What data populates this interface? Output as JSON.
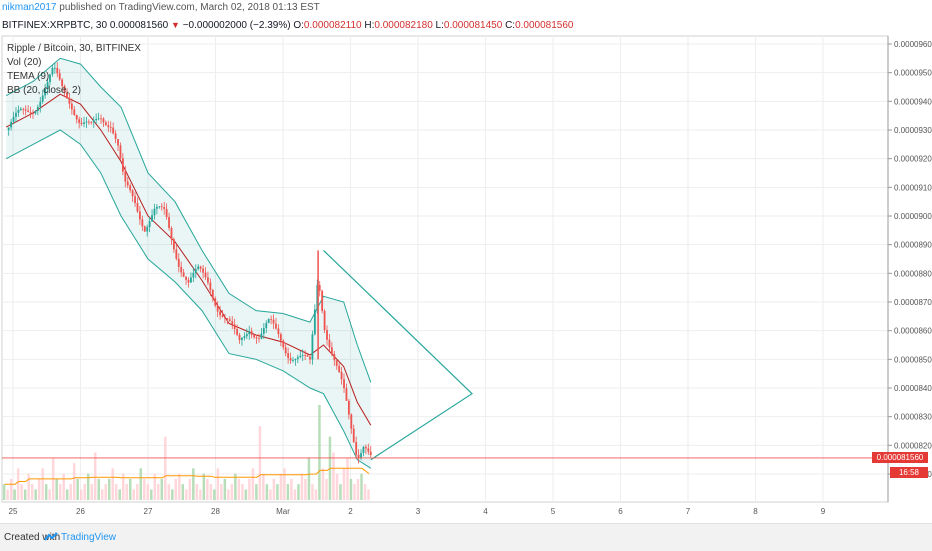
{
  "header": {
    "author": "nikman2017",
    "published_text": " published on TradingView.com, March 02, 2018 01:13 EST",
    "symbol": "BITFINEX:XRPBTC, 30",
    "last": "0.000081560",
    "change": "−0.000002000 (−2.39%)",
    "o_label": "O:",
    "o_value": "0.000082110",
    "h_label": "H:",
    "h_value": "0.000082180",
    "l_label": "L:",
    "l_value": "0.000081450",
    "c_label": "C:",
    "c_value": "0.000081560"
  },
  "legend": {
    "title": "Ripple / Bitcoin, 30, BITFINEX",
    "vol": "Vol (20)",
    "tema": "TEMA (9)",
    "bb": "BB (20, close, 2)"
  },
  "price_tag": {
    "last": "0.000081560",
    "countdown": "16:58"
  },
  "footer": {
    "created_with": "Created with",
    "brand": "TradingView"
  },
  "colors": {
    "up": "#26a69a",
    "down": "#ef5350",
    "bb_fill": "#26a69a",
    "bb_line": "#26a69a",
    "basis": "#b71c1c",
    "triangle": "#26a69a",
    "price_line": "#ef5350",
    "vol_up": "#a5d6a7",
    "vol_down": "#ffcdd2",
    "vol_ma": "#ff9800"
  },
  "chart_data": {
    "type": "candlestick",
    "y_axis": {
      "min": 8.1e-05,
      "max": 9.6e-05,
      "ticks": [
        "0.000096000",
        "0.000095000",
        "0.000094000",
        "0.000093000",
        "0.000092000",
        "0.000091000",
        "0.000090000",
        "0.000089000",
        "0.000088000",
        "0.000087000",
        "0.000086000",
        "0.000085000",
        "0.000084000",
        "0.000083000",
        "0.000082000",
        "0.000081000"
      ]
    },
    "x_axis": {
      "range_days": [
        24.9,
        10.0
      ],
      "ticks": [
        {
          "day": 25,
          "label": "25"
        },
        {
          "day": 26,
          "label": "26"
        },
        {
          "day": 27,
          "label": "27"
        },
        {
          "day": 28,
          "label": "28"
        },
        {
          "day": 29,
          "label": "Mar"
        },
        {
          "day": 30,
          "label": "2"
        },
        {
          "day": 31,
          "label": "3"
        },
        {
          "day": 32,
          "label": "4"
        },
        {
          "day": 33,
          "label": "5"
        },
        {
          "day": 34,
          "label": "6"
        },
        {
          "day": 35,
          "label": "7"
        },
        {
          "day": 36,
          "label": "8"
        },
        {
          "day": 37,
          "label": "9"
        }
      ]
    },
    "close_path": [
      {
        "d": 24.9,
        "v": 9.3e-05
      },
      {
        "d": 25.1,
        "v": 9.35e-05
      },
      {
        "d": 25.3,
        "v": 9.38e-05
      },
      {
        "d": 25.5,
        "v": 9.45e-05
      },
      {
        "d": 25.6,
        "v": 9.5e-05
      },
      {
        "d": 25.7,
        "v": 9.46e-05
      },
      {
        "d": 25.85,
        "v": 9.41e-05
      },
      {
        "d": 26.0,
        "v": 9.32e-05
      },
      {
        "d": 26.15,
        "v": 9.3e-05
      },
      {
        "d": 26.3,
        "v": 9.35e-05
      },
      {
        "d": 26.45,
        "v": 9.33e-05
      },
      {
        "d": 26.55,
        "v": 9.25e-05
      },
      {
        "d": 26.65,
        "v": 9.1e-05
      },
      {
        "d": 26.8,
        "v": 9.05e-05
      },
      {
        "d": 26.95,
        "v": 8.97e-05
      },
      {
        "d": 27.1,
        "v": 9.02e-05
      },
      {
        "d": 27.25,
        "v": 9e-05
      },
      {
        "d": 27.35,
        "v": 8.92e-05
      },
      {
        "d": 27.45,
        "v": 8.85e-05
      },
      {
        "d": 27.6,
        "v": 8.77e-05
      },
      {
        "d": 27.75,
        "v": 8.8e-05
      },
      {
        "d": 27.9,
        "v": 8.77e-05
      },
      {
        "d": 28.05,
        "v": 8.68e-05
      },
      {
        "d": 28.2,
        "v": 8.62e-05
      },
      {
        "d": 28.35,
        "v": 8.55e-05
      },
      {
        "d": 28.5,
        "v": 8.62e-05
      },
      {
        "d": 28.65,
        "v": 8.58e-05
      },
      {
        "d": 28.8,
        "v": 8.62e-05
      },
      {
        "d": 28.95,
        "v": 8.58e-05
      },
      {
        "d": 29.1,
        "v": 8.52e-05
      },
      {
        "d": 29.25,
        "v": 8.5e-05
      },
      {
        "d": 29.4,
        "v": 8.48e-05
      },
      {
        "d": 29.52,
        "v": 8.8e-05
      },
      {
        "d": 29.62,
        "v": 8.62e-05
      },
      {
        "d": 29.75,
        "v": 8.5e-05
      },
      {
        "d": 29.9,
        "v": 8.38e-05
      },
      {
        "d": 30.02,
        "v": 8.25e-05
      },
      {
        "d": 30.1,
        "v": 8.17e-05
      },
      {
        "d": 30.2,
        "v": 8.22e-05
      },
      {
        "d": 30.3,
        "v": 8.16e-05
      }
    ],
    "bollinger_bands": {
      "upper": [
        {
          "d": 24.9,
          "v": 9.42e-05
        },
        {
          "d": 25.3,
          "v": 9.47e-05
        },
        {
          "d": 25.7,
          "v": 9.55e-05
        },
        {
          "d": 26.0,
          "v": 9.53e-05
        },
        {
          "d": 26.3,
          "v": 9.45e-05
        },
        {
          "d": 26.6,
          "v": 9.38e-05
        },
        {
          "d": 27.0,
          "v": 9.15e-05
        },
        {
          "d": 27.4,
          "v": 9.05e-05
        },
        {
          "d": 27.8,
          "v": 8.88e-05
        },
        {
          "d": 28.2,
          "v": 8.73e-05
        },
        {
          "d": 28.6,
          "v": 8.67e-05
        },
        {
          "d": 29.0,
          "v": 8.66e-05
        },
        {
          "d": 29.4,
          "v": 8.63e-05
        },
        {
          "d": 29.6,
          "v": 8.72e-05
        },
        {
          "d": 29.9,
          "v": 8.7e-05
        },
        {
          "d": 30.1,
          "v": 8.55e-05
        },
        {
          "d": 30.3,
          "v": 8.42e-05
        }
      ],
      "lower": [
        {
          "d": 24.9,
          "v": 9.2e-05
        },
        {
          "d": 25.3,
          "v": 9.25e-05
        },
        {
          "d": 25.7,
          "v": 9.3e-05
        },
        {
          "d": 26.0,
          "v": 9.25e-05
        },
        {
          "d": 26.3,
          "v": 9.15e-05
        },
        {
          "d": 26.6,
          "v": 9e-05
        },
        {
          "d": 27.0,
          "v": 8.85e-05
        },
        {
          "d": 27.4,
          "v": 8.77e-05
        },
        {
          "d": 27.8,
          "v": 8.67e-05
        },
        {
          "d": 28.2,
          "v": 8.52e-05
        },
        {
          "d": 28.6,
          "v": 8.5e-05
        },
        {
          "d": 29.0,
          "v": 8.46e-05
        },
        {
          "d": 29.4,
          "v": 8.4e-05
        },
        {
          "d": 29.6,
          "v": 8.38e-05
        },
        {
          "d": 29.9,
          "v": 8.25e-05
        },
        {
          "d": 30.1,
          "v": 8.15e-05
        },
        {
          "d": 30.3,
          "v": 8.12e-05
        }
      ]
    },
    "triangle": [
      {
        "d": 29.6,
        "v": 8.88e-05
      },
      {
        "d": 31.8,
        "v": 8.38e-05
      },
      {
        "d": 30.3,
        "v": 8.15e-05
      }
    ],
    "price_line": 8.156e-05,
    "volume": {
      "values": [
        3,
        2,
        4,
        2,
        6,
        3,
        2,
        5,
        3,
        2,
        4,
        6,
        3,
        2,
        8,
        4,
        3,
        5,
        2,
        3,
        7,
        4,
        2,
        3,
        5,
        3,
        9,
        4,
        2,
        3,
        4,
        6,
        3,
        2,
        5,
        3,
        4,
        2,
        3,
        6,
        4,
        3,
        2,
        5,
        3,
        4,
        12,
        3,
        2,
        4,
        5,
        3,
        2,
        4,
        6,
        3,
        2,
        5,
        4,
        3,
        2,
        6,
        3,
        4,
        2,
        3,
        5,
        4,
        3,
        2,
        4,
        6,
        3,
        14,
        5,
        3,
        2,
        4,
        3,
        5,
        6,
        3,
        4,
        2,
        3,
        5,
        4,
        8,
        3,
        2,
        18,
        6,
        4,
        12,
        9,
        5,
        3,
        6,
        8,
        4,
        3,
        4,
        5,
        3,
        2
      ],
      "ma": [
        3,
        3,
        3,
        3,
        3.5,
        3.5,
        3.5,
        4,
        4,
        4,
        4,
        4,
        4,
        4,
        4,
        4,
        4,
        4,
        4,
        4,
        4.2,
        4.2,
        4.2,
        4.2,
        4.2,
        4.3,
        4.3,
        4.3,
        4.3,
        4.3,
        4.3,
        4.3,
        4.3,
        4.2,
        4.2,
        4.2,
        4.2,
        4.2,
        4.2,
        4.2,
        4.2,
        4.2,
        4.2,
        4.2,
        4.2,
        4.2,
        4.6,
        4.6,
        4.6,
        4.6,
        4.6,
        4.6,
        4.6,
        4.6,
        4.6,
        4.5,
        4.5,
        4.5,
        4.5,
        4.5,
        4.3,
        4.3,
        4.3,
        4.3,
        4.3,
        4.3,
        4.3,
        4.3,
        4.3,
        4.3,
        4.3,
        4.3,
        4.3,
        4.8,
        4.8,
        4.8,
        4.8,
        4.8,
        4.8,
        4.8,
        4.8,
        4.8,
        4.8,
        4.8,
        4.8,
        4.8,
        4.8,
        4.9,
        4.9,
        4.9,
        5.6,
        5.6,
        5.6,
        6,
        6,
        6,
        6,
        6,
        6,
        6,
        6,
        6,
        6,
        5.5,
        5
      ]
    }
  }
}
